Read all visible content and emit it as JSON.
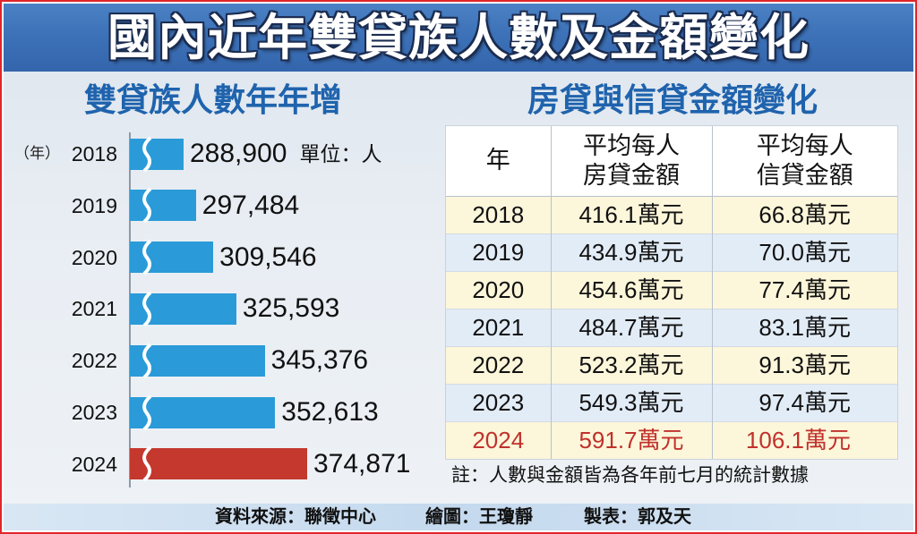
{
  "title": "國內近年雙貸族人數及金額變化",
  "colors": {
    "frame_border": "#e0262c",
    "title_bg": "#3d72b8",
    "heading": "#1f63ad",
    "row_a": "#fcf6da",
    "row_b": "#e2ecf7",
    "footer_bg": "#c4d9ee"
  },
  "chart_data": [
    {
      "type": "bar",
      "orientation": "horizontal",
      "title": "雙貸族人數年年增",
      "category_axis_label": "（年）",
      "unit_label": "單位：人",
      "categories": [
        "2018",
        "2019",
        "2020",
        "2021",
        "2022",
        "2023",
        "2024"
      ],
      "values": [
        288900,
        297484,
        309546,
        325593,
        345376,
        352613,
        374871
      ],
      "value_labels": [
        "288,900",
        "297,484",
        "309,546",
        "325,593",
        "345,376",
        "352,613",
        "374,871"
      ],
      "axis_break": true,
      "grid": false,
      "bar_colors": [
        "#2a9bd8",
        "#2a9bd8",
        "#2a9bd8",
        "#2a9bd8",
        "#2a9bd8",
        "#2a9bd8",
        "#c4382d"
      ]
    },
    {
      "type": "table",
      "title": "房貸與信貸金額變化",
      "columns": [
        [
          "年"
        ],
        [
          "平均每人",
          "房貸金額"
        ],
        [
          "平均每人",
          "信貸金額"
        ]
      ],
      "rows": [
        [
          "2018",
          "416.1萬元",
          "66.8萬元"
        ],
        [
          "2019",
          "434.9萬元",
          "70.0萬元"
        ],
        [
          "2020",
          "454.6萬元",
          "77.4萬元"
        ],
        [
          "2021",
          "484.7萬元",
          "83.1萬元"
        ],
        [
          "2022",
          "523.2萬元",
          "91.3萬元"
        ],
        [
          "2023",
          "549.3萬元",
          "97.4萬元"
        ],
        [
          "2024",
          "591.7萬元",
          "106.1萬元"
        ]
      ],
      "row_text_colors": [
        "#111111",
        "#111111",
        "#111111",
        "#111111",
        "#111111",
        "#111111",
        "#c0312b"
      ]
    }
  ],
  "note": "註：人數與金額皆為各年前七月的統計數據",
  "credits": {
    "source": "資料來源：聯徵中心",
    "graphics": "繪圖：王瓊靜",
    "table": "製表：郭及天"
  }
}
